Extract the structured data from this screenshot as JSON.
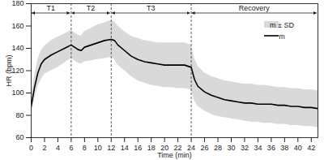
{
  "chart_data": {
    "type": "line",
    "x_label": "Time (min)",
    "y_label": "HR (bpm)",
    "x": [
      0,
      0.5,
      1,
      1.5,
      2,
      3,
      4,
      5,
      6,
      7,
      7.5,
      8,
      9,
      10,
      11,
      12,
      12.5,
      13,
      14,
      15,
      16,
      17,
      18,
      19,
      20,
      21,
      22,
      23,
      24,
      24.5,
      25,
      26,
      27,
      28,
      29,
      30,
      31,
      32,
      33,
      34,
      35,
      36,
      37,
      38,
      39,
      40,
      41,
      42,
      43
    ],
    "series": [
      {
        "name": "m",
        "color": "#000000",
        "values": [
          88,
          105,
          118,
          126,
          130,
          134,
          137,
          140,
          143,
          139,
          138,
          141,
          143,
          145,
          147,
          148,
          147,
          143,
          138,
          133,
          130,
          128,
          127,
          126,
          125,
          125,
          125,
          125,
          123,
          112,
          106,
          101,
          98,
          96,
          94,
          93,
          92,
          91,
          91,
          90,
          90,
          90,
          89,
          89,
          88,
          88,
          87,
          87,
          86
        ]
      }
    ],
    "band": {
      "name": "m ± SD",
      "color": "#d9d9d9",
      "lower": [
        80,
        95,
        106,
        112,
        117,
        120,
        123,
        127,
        131,
        127,
        126,
        128,
        129,
        130,
        131,
        132,
        130,
        125,
        120,
        115,
        111,
        109,
        107,
        106,
        105,
        105,
        104,
        104,
        103,
        93,
        88,
        84,
        81,
        79,
        78,
        77,
        76,
        75,
        74,
        74,
        73,
        73,
        72,
        72,
        71,
        71,
        70,
        70,
        69
      ],
      "upper": [
        96,
        115,
        130,
        138,
        142,
        147,
        150,
        153,
        156,
        152,
        151,
        155,
        158,
        161,
        163,
        165,
        164,
        160,
        155,
        151,
        149,
        147,
        146,
        145,
        145,
        145,
        145,
        145,
        143,
        131,
        124,
        118,
        115,
        113,
        111,
        110,
        109,
        108,
        108,
        107,
        107,
        106,
        105,
        105,
        104,
        104,
        103,
        103,
        102
      ]
    },
    "phases": [
      {
        "label": "T1",
        "start": 0,
        "end": 6
      },
      {
        "label": "T2",
        "start": 6,
        "end": 12
      },
      {
        "label": "T3",
        "start": 12,
        "end": 24
      },
      {
        "label": "Recovery",
        "start": 24,
        "end": 43
      }
    ],
    "xlim": [
      0,
      43
    ],
    "xticks": [
      0,
      2,
      4,
      6,
      8,
      10,
      12,
      14,
      16,
      18,
      20,
      22,
      24,
      26,
      28,
      30,
      32,
      34,
      36,
      38,
      40,
      42
    ],
    "ylim": [
      60,
      180
    ],
    "yticks": [
      60,
      80,
      100,
      120,
      140,
      160,
      180
    ],
    "legend": "upper right"
  }
}
